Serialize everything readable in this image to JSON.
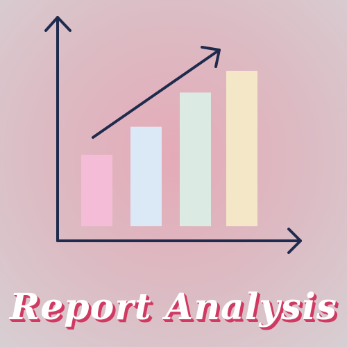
{
  "headline": "Report Analysis",
  "colors": {
    "axis": "#1f2b4d",
    "bars": [
      "#f4bcd6",
      "#dbe8f6",
      "#dceae4",
      "#f3e7c7"
    ],
    "headline_fill": "#ffffff",
    "headline_shadow": "#d03a62"
  },
  "icons": [
    "bar-chart-icon",
    "trend-arrow-icon"
  ],
  "bar_levels": [
    0.46,
    0.64,
    0.86,
    1.0
  ]
}
